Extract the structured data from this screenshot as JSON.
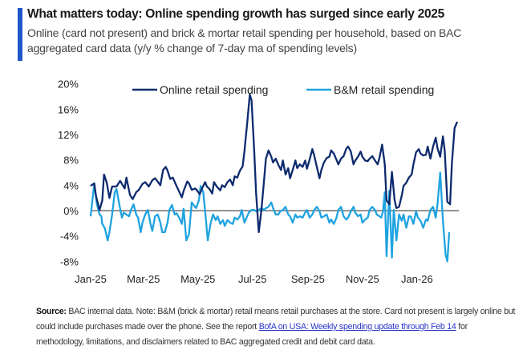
{
  "header": {
    "title": "What matters today: Online spending growth has surged since early 2025",
    "subtitle": "Online (card not present) and brick & mortar retail spending per household, based on BAC aggregated card data (y/y % change of 7-day ma of spending levels)",
    "accent_color": "#1f56c9"
  },
  "footer": {
    "source_label": "Source:",
    "text_before_link": " BAC internal data. Note: B&M (brick & mortar) retail means retail purchases at the store. Card not present is largely online but could include purchases made over the phone. See the report ",
    "link_text": "BofA on USA: Weekly spending update through Feb 14",
    "text_after_link": " for methodology, limitations, and disclaimers related to BAC aggregated credit and debit card data."
  },
  "chart_data": {
    "type": "line",
    "title": "",
    "xlabel": "",
    "ylabel": "",
    "ylim": [
      -8,
      20
    ],
    "yticks": [
      20,
      16,
      12,
      8,
      4,
      0,
      -4,
      -8
    ],
    "ytick_labels": [
      "20%",
      "16%",
      "12%",
      "8%",
      "4%",
      "0%",
      "-4%",
      "-8%"
    ],
    "xlim_days_since_2025_01_01": [
      0,
      412
    ],
    "xticks": [
      {
        "label": "Jan-25",
        "day": 0
      },
      {
        "label": "Mar-25",
        "day": 59
      },
      {
        "label": "May-25",
        "day": 120
      },
      {
        "label": "Jul-25",
        "day": 181
      },
      {
        "label": "Sep-25",
        "day": 243
      },
      {
        "label": "Nov-25",
        "day": 304
      },
      {
        "label": "Jan-26",
        "day": 365
      }
    ],
    "zero_line": true,
    "grid": false,
    "legend": "top-center",
    "series": [
      {
        "name": "Online retail spending",
        "color": "#0d2a6e",
        "days": [
          0,
          4,
          6,
          10,
          13,
          15,
          18,
          21,
          24,
          29,
          33,
          38,
          40,
          44,
          47,
          51,
          54,
          58,
          61,
          65,
          69,
          72,
          76,
          78,
          81,
          84,
          86,
          89,
          92,
          95,
          99,
          102,
          104,
          108,
          110,
          113,
          117,
          119,
          122,
          125,
          128,
          130,
          133,
          136,
          138,
          141,
          145,
          147,
          150,
          153,
          156,
          159,
          161,
          164,
          167,
          170,
          172,
          175,
          178,
          180,
          183,
          185,
          188,
          191,
          194,
          196,
          199,
          202,
          204,
          207,
          210,
          213,
          215,
          218,
          221,
          223,
          226,
          229,
          231,
          234,
          237,
          240,
          242,
          245,
          248,
          250,
          253,
          256,
          258,
          261,
          264,
          267,
          269,
          272,
          275,
          277,
          280,
          283,
          286,
          288,
          291,
          294,
          296,
          299,
          302,
          304,
          307,
          310,
          312,
          315,
          318,
          321,
          323,
          326,
          329,
          331,
          334,
          337,
          340,
          342,
          345,
          348,
          350,
          353,
          356,
          359,
          361,
          364,
          367,
          369,
          372,
          375,
          377,
          380,
          383,
          386,
          388,
          391,
          394,
          396,
          399,
          402,
          404,
          407,
          410
        ],
        "values": [
          3.9,
          4.3,
          2.3,
          0.1,
          1.6,
          5.7,
          4.4,
          2.0,
          3.8,
          3.8,
          4.7,
          3.5,
          5.2,
          2.5,
          1.8,
          2.9,
          3.3,
          4.2,
          4.5,
          3.8,
          4.8,
          5.1,
          4.4,
          4.0,
          6.4,
          6.9,
          6.3,
          5.0,
          5.2,
          4.2,
          3.0,
          2.1,
          3.1,
          4.6,
          4.3,
          3.3,
          3.5,
          3.2,
          2.6,
          3.6,
          4.5,
          3.8,
          3.4,
          2.7,
          4.5,
          3.8,
          3.2,
          4.0,
          3.7,
          4.5,
          4.9,
          4.0,
          5.4,
          5.2,
          6.3,
          7.0,
          9.3,
          13.7,
          18.3,
          17.4,
          9.2,
          2.9,
          -3.4,
          0.1,
          4.8,
          8.2,
          9.5,
          8.5,
          7.6,
          8.2,
          7.2,
          6.4,
          7.9,
          5.7,
          6.7,
          5.1,
          6.4,
          7.9,
          6.7,
          7.3,
          6.9,
          7.9,
          6.6,
          8.1,
          9.7,
          8.7,
          6.9,
          5.1,
          6.4,
          7.6,
          8.3,
          8.5,
          9.5,
          9.0,
          8.0,
          7.3,
          8.2,
          8.6,
          9.8,
          10.1,
          9.3,
          7.3,
          7.9,
          8.5,
          9.3,
          8.5,
          7.9,
          7.8,
          8.2,
          8.6,
          7.9,
          7.3,
          8.3,
          10.4,
          7.3,
          1.6,
          1.0,
          6.1,
          1.6,
          0.4,
          0.6,
          2.4,
          3.9,
          4.4,
          5.2,
          5.7,
          7.3,
          9.2,
          9.7,
          9.0,
          8.7,
          8.8,
          10.1,
          8.2,
          10.1,
          11.5,
          9.8,
          8.5,
          11.7,
          9.5,
          1.4,
          1.0,
          7.3,
          13.0,
          14.0,
          12.4,
          10.7,
          11.1,
          11.5,
          11.0
        ]
      },
      {
        "name": "B&M retail spending",
        "color": "#1fa3e0",
        "days": [
          0,
          3,
          4,
          7,
          10,
          12,
          13,
          16,
          19,
          21,
          24,
          27,
          29,
          32,
          35,
          37,
          40,
          43,
          45,
          48,
          51,
          53,
          56,
          58,
          61,
          64,
          67,
          69,
          72,
          75,
          78,
          80,
          83,
          86,
          88,
          91,
          94,
          96,
          99,
          102,
          104,
          107,
          110,
          113,
          115,
          118,
          121,
          123,
          126,
          129,
          131,
          134,
          137,
          140,
          142,
          145,
          148,
          150,
          153,
          156,
          159,
          161,
          164,
          167,
          169,
          172,
          175,
          177,
          180,
          183,
          185,
          188,
          191,
          194,
          196,
          199,
          202,
          204,
          207,
          210,
          212,
          215,
          218,
          221,
          223,
          226,
          229,
          231,
          234,
          237,
          240,
          242,
          245,
          248,
          250,
          253,
          256,
          258,
          261,
          264,
          267,
          269,
          272,
          275,
          277,
          280,
          283,
          286,
          288,
          291,
          294,
          296,
          299,
          302,
          304,
          307,
          310,
          312,
          315,
          318,
          320,
          323,
          325,
          327,
          329,
          331,
          334,
          337,
          339,
          342,
          345,
          348,
          350,
          353,
          356,
          358,
          361,
          364,
          366,
          369,
          372,
          375,
          377,
          380,
          383,
          386,
          388,
          391,
          394,
          397,
          399,
          401
        ],
        "values": [
          -0.9,
          2.9,
          4.2,
          1.0,
          -0.6,
          -0.9,
          -2.1,
          -2.8,
          -4.7,
          -3.4,
          -0.6,
          2.9,
          3.4,
          1.0,
          -1.1,
          -0.3,
          -0.6,
          -0.9,
          0.1,
          1.0,
          -0.6,
          -1.1,
          -3.4,
          -1.9,
          -0.6,
          0.1,
          -2.1,
          -3.2,
          -0.9,
          -0.6,
          -1.9,
          -3.4,
          -3.4,
          -1.9,
          0.1,
          0.9,
          -0.6,
          -0.4,
          -1.1,
          -2.1,
          0.3,
          -4.7,
          -3.7,
          1.3,
          0.9,
          0.4,
          1.6,
          3.9,
          2.9,
          -1.5,
          -4.7,
          -2.1,
          -0.6,
          -1.5,
          -0.9,
          -2.1,
          -1.5,
          -2.4,
          -1.5,
          -1.9,
          -2.1,
          -1.1,
          -1.4,
          -0.9,
          0.1,
          -1.9,
          -0.9,
          -0.3,
          0.1,
          0.1,
          -0.1,
          0.1,
          0.4,
          0.1,
          0.4,
          0.6,
          1.3,
          0.4,
          -0.6,
          -0.6,
          -0.1,
          0.1,
          0.6,
          -0.6,
          -0.9,
          -1.9,
          -0.6,
          -1.1,
          -0.9,
          -1.1,
          -0.3,
          0.1,
          -1.1,
          -0.6,
          0.1,
          0.6,
          -0.1,
          -1.1,
          -0.9,
          -0.6,
          -1.9,
          -1.4,
          -2.1,
          -1.1,
          0.1,
          0.6,
          -0.9,
          -1.4,
          -1.1,
          -0.1,
          0.6,
          -0.3,
          -0.9,
          -0.6,
          -1.9,
          -1.4,
          -1.1,
          0.1,
          0.6,
          0.1,
          -0.6,
          -0.9,
          -1.1,
          -0.1,
          2.9,
          -7.2,
          3.1,
          -7.4,
          0.1,
          -4.7,
          -0.6,
          -1.6,
          -0.6,
          -2.7,
          -0.9,
          -0.9,
          -2.1,
          -0.1,
          -1.1,
          -1.6,
          -2.7,
          -1.4,
          -1.6,
          0.1,
          0.6,
          -1.1,
          1.1,
          6.0,
          -1.6,
          -6.9,
          -8.0,
          -3.4,
          -1.4,
          -0.6,
          -0.4,
          0.6,
          1.0
        ]
      }
    ]
  }
}
